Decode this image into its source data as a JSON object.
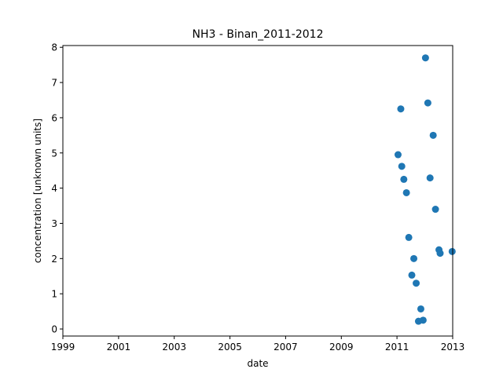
{
  "chart_data": {
    "type": "scatter",
    "title": "NH3 - Binan_2011-2012",
    "xlabel": "date",
    "ylabel": "concentration [unknown units]",
    "xlim": [
      "1999-01-01",
      "2013-01-01"
    ],
    "ylim": [
      -0.2,
      8.05
    ],
    "x_ticks": [
      "1999",
      "2001",
      "2003",
      "2005",
      "2007",
      "2009",
      "2011",
      "2013"
    ],
    "y_ticks": [
      "0",
      "1",
      "2",
      "3",
      "4",
      "5",
      "6",
      "7",
      "8"
    ],
    "grid": false,
    "marker_color": "#1f77b4",
    "points": [
      {
        "x": "2011-01-15",
        "y": 4.95
      },
      {
        "x": "2011-02-20",
        "y": 6.25
      },
      {
        "x": "2011-03-05",
        "y": 4.62
      },
      {
        "x": "2011-04-01",
        "y": 4.25
      },
      {
        "x": "2011-05-05",
        "y": 3.87
      },
      {
        "x": "2011-06-05",
        "y": 2.6
      },
      {
        "x": "2011-07-15",
        "y": 1.53
      },
      {
        "x": "2011-08-10",
        "y": 2.0
      },
      {
        "x": "2011-09-10",
        "y": 1.3
      },
      {
        "x": "2011-10-10",
        "y": 0.22
      },
      {
        "x": "2011-11-10",
        "y": 0.57
      },
      {
        "x": "2011-12-10",
        "y": 0.25
      },
      {
        "x": "2012-01-10",
        "y": 7.7
      },
      {
        "x": "2012-02-10",
        "y": 6.42
      },
      {
        "x": "2012-03-10",
        "y": 4.29
      },
      {
        "x": "2012-04-20",
        "y": 5.5
      },
      {
        "x": "2012-05-20",
        "y": 3.4
      },
      {
        "x": "2012-07-05",
        "y": 2.25
      },
      {
        "x": "2012-07-20",
        "y": 2.15
      },
      {
        "x": "2012-12-25",
        "y": 2.2
      }
    ]
  }
}
